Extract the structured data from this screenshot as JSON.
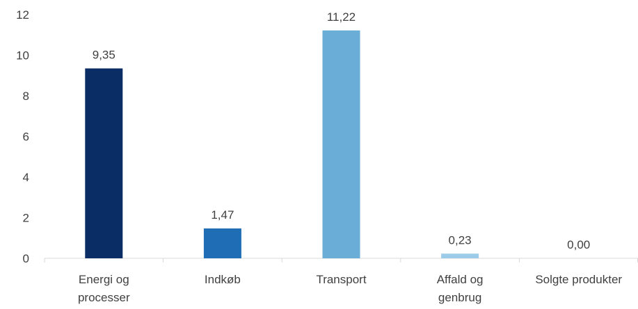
{
  "chart_data": {
    "type": "bar",
    "categories": [
      [
        "Energi og",
        "processer"
      ],
      [
        "Indkøb"
      ],
      [
        "Transport"
      ],
      [
        "Affald og",
        "genbrug"
      ],
      [
        "Solgte produkter"
      ]
    ],
    "values": [
      9.35,
      1.47,
      11.22,
      0.23,
      0.0
    ],
    "data_labels": [
      "9,35",
      "1,47",
      "11,22",
      "0,23",
      "0,00"
    ],
    "bar_colors": [
      "#0a2d65",
      "#1f6db5",
      "#6aaed8",
      "#9ccbea",
      "#9ccbea"
    ],
    "ylim": [
      0,
      12
    ],
    "yticks": [
      0,
      2,
      4,
      6,
      8,
      10,
      12
    ],
    "grid": false,
    "title": "",
    "xlabel": "",
    "ylabel": ""
  }
}
